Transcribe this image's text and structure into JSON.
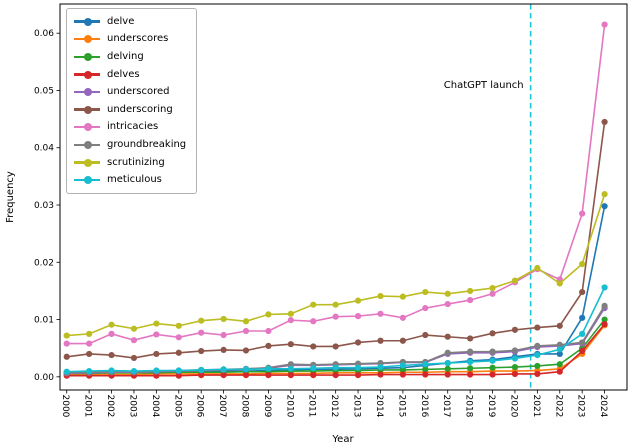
{
  "chart_data": {
    "type": "line",
    "title": "",
    "xlabel": "Year",
    "ylabel": "Frequency",
    "grid": false,
    "legend_position": "upper left",
    "x": [
      2000,
      2001,
      2002,
      2003,
      2004,
      2005,
      2006,
      2007,
      2008,
      2009,
      2010,
      2011,
      2012,
      2013,
      2014,
      2015,
      2016,
      2017,
      2018,
      2019,
      2020,
      2021,
      2022,
      2023,
      2024
    ],
    "xlim": [
      1999.7,
      2025.0
    ],
    "ylim": [
      -0.0023,
      0.0651
    ],
    "yticks": [
      0.0,
      0.01,
      0.02,
      0.03,
      0.04,
      0.05,
      0.06
    ],
    "series": [
      {
        "name": "delve",
        "color": "#1f77b4",
        "values": [
          0.0008,
          0.0008,
          0.0009,
          0.0008,
          0.0009,
          0.0009,
          0.001,
          0.001,
          0.001,
          0.0011,
          0.0012,
          0.0013,
          0.0013,
          0.0014,
          0.0015,
          0.0016,
          0.002,
          0.0024,
          0.0028,
          0.003,
          0.0035,
          0.004,
          0.004,
          0.0103,
          0.0298
        ]
      },
      {
        "name": "underscores",
        "color": "#ff7f0e",
        "values": [
          0.0004,
          0.0004,
          0.0004,
          0.0004,
          0.0005,
          0.0005,
          0.0005,
          0.0005,
          0.0005,
          0.0006,
          0.0006,
          0.0006,
          0.0007,
          0.0007,
          0.0007,
          0.0008,
          0.0008,
          0.0009,
          0.0009,
          0.001,
          0.001,
          0.0011,
          0.0014,
          0.004,
          0.009
        ]
      },
      {
        "name": "delving",
        "color": "#2ca02c",
        "values": [
          0.0006,
          0.0006,
          0.0007,
          0.0007,
          0.0007,
          0.0008,
          0.0008,
          0.0008,
          0.0009,
          0.0009,
          0.001,
          0.001,
          0.0011,
          0.0011,
          0.0012,
          0.0012,
          0.0013,
          0.0014,
          0.0015,
          0.0016,
          0.0017,
          0.0019,
          0.0022,
          0.005,
          0.01
        ]
      },
      {
        "name": "delves",
        "color": "#d62728",
        "values": [
          0.0002,
          0.0002,
          0.0002,
          0.0002,
          0.0002,
          0.0002,
          0.0003,
          0.0003,
          0.0003,
          0.0003,
          0.0003,
          0.0003,
          0.0003,
          0.0003,
          0.0004,
          0.0004,
          0.0004,
          0.0004,
          0.0004,
          0.0004,
          0.0005,
          0.0005,
          0.0009,
          0.0045,
          0.0092
        ]
      },
      {
        "name": "underscored",
        "color": "#9467bd",
        "values": [
          0.0006,
          0.0007,
          0.0008,
          0.0008,
          0.0009,
          0.001,
          0.0011,
          0.0012,
          0.0013,
          0.0015,
          0.002,
          0.002,
          0.0021,
          0.0022,
          0.0023,
          0.0025,
          0.0025,
          0.004,
          0.0042,
          0.0042,
          0.0044,
          0.0052,
          0.0054,
          0.0058,
          0.012
        ]
      },
      {
        "name": "underscoring",
        "color": "#8c564b",
        "values": [
          0.0035,
          0.004,
          0.0038,
          0.0033,
          0.004,
          0.0042,
          0.0045,
          0.0047,
          0.0046,
          0.0054,
          0.0057,
          0.0053,
          0.0053,
          0.006,
          0.0063,
          0.0063,
          0.0073,
          0.007,
          0.0067,
          0.0076,
          0.0082,
          0.0086,
          0.0089,
          0.0148,
          0.0445
        ]
      },
      {
        "name": "intricacies",
        "color": "#e377c2",
        "values": [
          0.0058,
          0.0058,
          0.0075,
          0.0064,
          0.0074,
          0.0069,
          0.0077,
          0.0073,
          0.008,
          0.008,
          0.0099,
          0.0097,
          0.0105,
          0.0106,
          0.011,
          0.0103,
          0.012,
          0.0127,
          0.0134,
          0.0145,
          0.0165,
          0.0188,
          0.017,
          0.0285,
          0.0615
        ]
      },
      {
        "name": "groundbreaking",
        "color": "#7f7f7f",
        "values": [
          0.0007,
          0.0008,
          0.0009,
          0.0009,
          0.001,
          0.0011,
          0.0012,
          0.0013,
          0.0014,
          0.0016,
          0.0022,
          0.0021,
          0.0022,
          0.0023,
          0.0024,
          0.0026,
          0.0026,
          0.0042,
          0.0044,
          0.0044,
          0.0046,
          0.0054,
          0.0056,
          0.006,
          0.0124
        ]
      },
      {
        "name": "scrutinizing",
        "color": "#bcbd22",
        "values": [
          0.0072,
          0.0075,
          0.0091,
          0.0084,
          0.0093,
          0.0089,
          0.0098,
          0.0101,
          0.0097,
          0.0109,
          0.011,
          0.0126,
          0.0126,
          0.0133,
          0.0141,
          0.014,
          0.0148,
          0.0145,
          0.015,
          0.0155,
          0.0168,
          0.019,
          0.0163,
          0.0197,
          0.0319
        ]
      },
      {
        "name": "meticulous",
        "color": "#17becf",
        "values": [
          0.0009,
          0.001,
          0.0011,
          0.001,
          0.0011,
          0.0011,
          0.0012,
          0.0013,
          0.0013,
          0.0014,
          0.0014,
          0.0015,
          0.0016,
          0.0016,
          0.0017,
          0.002,
          0.0022,
          0.0024,
          0.0026,
          0.0028,
          0.0032,
          0.0038,
          0.0048,
          0.0075,
          0.0156
        ]
      }
    ],
    "annotation": {
      "label": "ChatGPT launch",
      "x": 2020.7,
      "line_color": "#20c4d8",
      "line_style": "dashed"
    }
  }
}
